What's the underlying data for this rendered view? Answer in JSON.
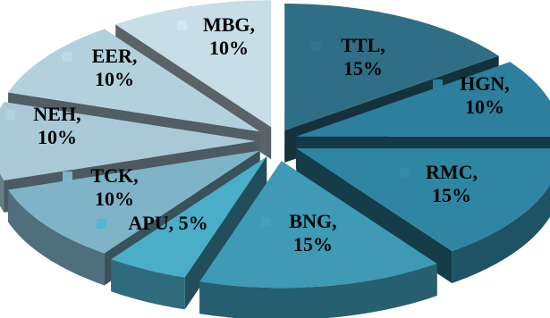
{
  "chart_data": {
    "type": "pie",
    "style": "3d-exploded",
    "title": "",
    "legend": "none",
    "slices": [
      {
        "name": "TTL",
        "value": 15,
        "label_lines": [
          "TTL,",
          "15%"
        ],
        "color": "#2e6f86"
      },
      {
        "name": "HGN",
        "value": 10,
        "label_lines": [
          "HGN,",
          "10%"
        ],
        "color": "#2c7f9d"
      },
      {
        "name": "RMC",
        "value": 15,
        "label_lines": [
          "RMC,",
          "15%"
        ],
        "color": "#2e86a3"
      },
      {
        "name": "BNG",
        "value": 15,
        "label_lines": [
          "BNG,",
          "15%"
        ],
        "color": "#3e9ab5"
      },
      {
        "name": "APU",
        "value": 5,
        "label_lines": [
          "APU, 5%"
        ],
        "color": "#4aaec9"
      },
      {
        "name": "TCK",
        "value": 10,
        "label_lines": [
          "TCK,",
          "10%"
        ],
        "color": "#7fb3c8"
      },
      {
        "name": "NEH",
        "value": 10,
        "label_lines": [
          "NEH,",
          "10%"
        ],
        "color": "#a9c9d7"
      },
      {
        "name": "EER",
        "value": 10,
        "label_lines": [
          "EER,",
          "10%"
        ],
        "color": "#b3d1dd"
      },
      {
        "name": "MBG",
        "value": 10,
        "label_lines": [
          "MBG,",
          "10%"
        ],
        "color": "#c7dde8"
      }
    ]
  }
}
